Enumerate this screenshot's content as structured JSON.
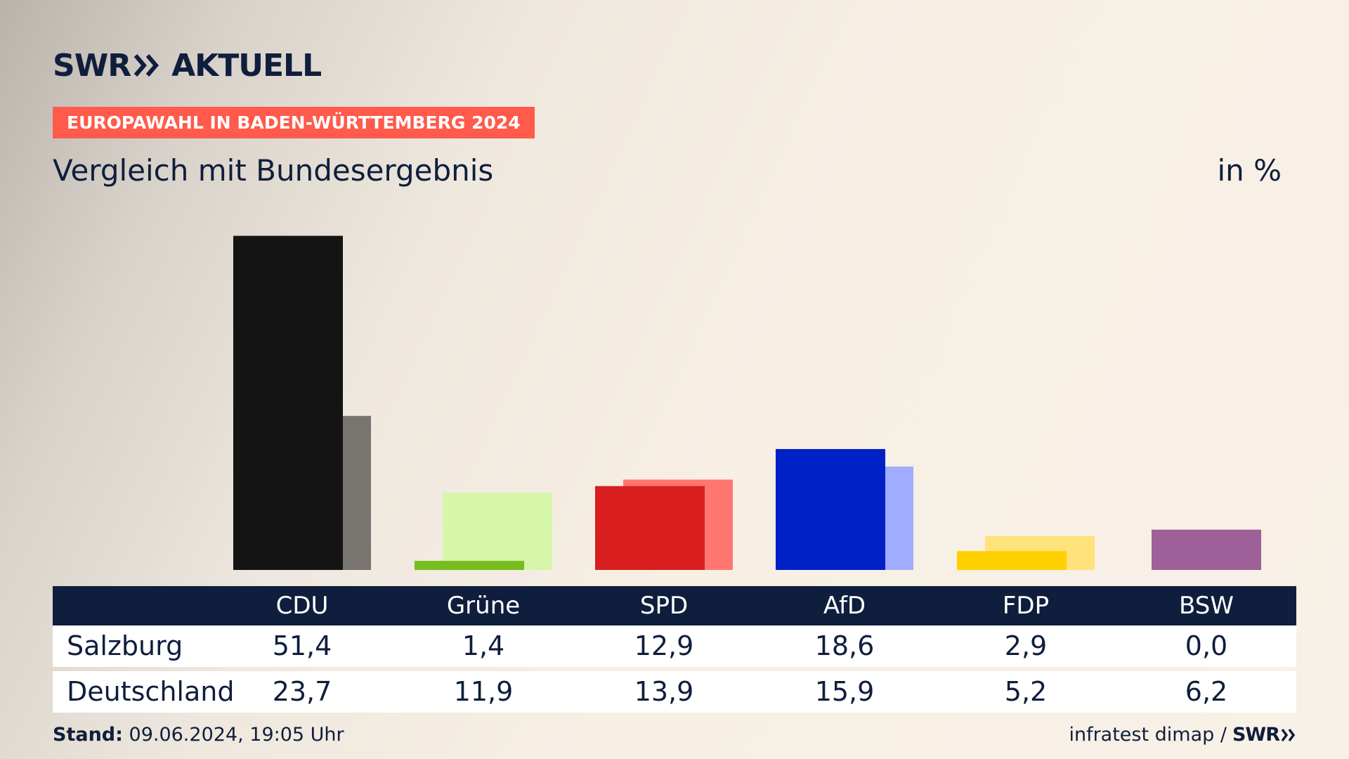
{
  "header": {
    "logo_text_left": "SWR",
    "logo_text_right": "AKTUELL",
    "banner": "EUROPAWAHL IN BADEN-WÜRTTEMBERG 2024",
    "subtitle": "Vergleich mit Bundesergebnis",
    "unit": "in %"
  },
  "colors": {
    "navy": "#0f1e3d",
    "banner": "#ff5a4a"
  },
  "chart_data": {
    "type": "bar",
    "categories": [
      "CDU",
      "Grüne",
      "SPD",
      "AfD",
      "FDP",
      "BSW"
    ],
    "series": [
      {
        "name": "Salzburg",
        "values": [
          51.4,
          1.4,
          12.9,
          18.6,
          2.9,
          0.0
        ],
        "colors": [
          "#141414",
          "#77bd1f",
          "#d81e1e",
          "#0021c8",
          "#ffd000",
          "#9d6098"
        ]
      },
      {
        "name": "Deutschland",
        "values": [
          23.7,
          11.9,
          13.9,
          15.9,
          5.2,
          6.2
        ],
        "colors": [
          "#787470",
          "#d6f6aa",
          "#ff7670",
          "#a0acff",
          "#ffe27a",
          "#9d6098"
        ]
      }
    ],
    "table": {
      "rows": [
        {
          "label": "Salzburg",
          "values": [
            "51,4",
            "1,4",
            "12,9",
            "18,6",
            "2,9",
            "0,0"
          ]
        },
        {
          "label": "Deutschland",
          "values": [
            "23,7",
            "11,9",
            "13,9",
            "15,9",
            "5,2",
            "6,2"
          ]
        }
      ]
    },
    "ylim": [
      0,
      52
    ],
    "xlabel": "",
    "ylabel": ""
  },
  "footer": {
    "stand_label": "Stand:",
    "stand_value": "09.06.2024, 19:05 Uhr",
    "source": "infratest dimap /",
    "source_logo": "SWR"
  }
}
